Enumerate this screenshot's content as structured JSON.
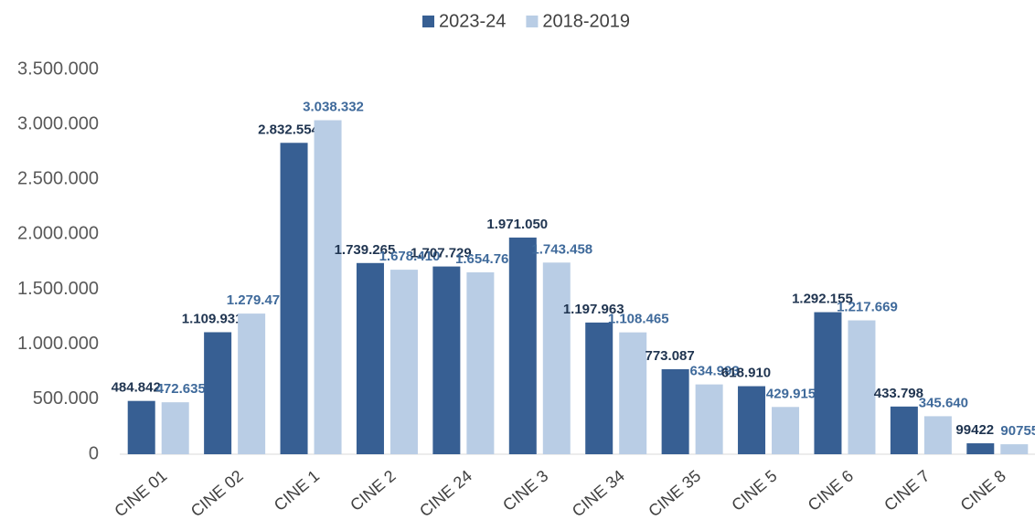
{
  "chart_data": {
    "type": "bar",
    "categories": [
      "CINE 01",
      "CINE 02",
      "CINE 1",
      "CINE 2",
      "CINE 24",
      "CINE 3",
      "CINE 34",
      "CINE 35",
      "CINE 5",
      "CINE 6",
      "CINE 7",
      "CINE 8"
    ],
    "series": [
      {
        "name": "2023-24",
        "color": "#375f93",
        "label_color": "#1f3450",
        "values": [
          484842,
          1109931,
          2832554,
          1739265,
          1707729,
          1971050,
          1197963,
          773087,
          618910,
          1292155,
          433798,
          99422
        ],
        "value_labels": [
          "484.842",
          "1.109.931",
          "2.832.554",
          "1.739.265",
          "1.707.729",
          "1.971.050",
          "1.197.963",
          "773.087",
          "618.910",
          "1.292.155",
          "433.798",
          "99422"
        ]
      },
      {
        "name": "2018-2019",
        "color": "#b9cde5",
        "label_color": "#3f6a9b",
        "values": [
          472635,
          1279475,
          3038332,
          1678410,
          1654762,
          1743458,
          1108465,
          634993,
          429915,
          1217669,
          345640,
          90755
        ],
        "value_labels": [
          "472.635",
          "1.279.475",
          "3.038.332",
          "1.678.410",
          "1.654.762",
          "1.743.458",
          "1.108.465",
          "634.993",
          "429.915",
          "1.217.669",
          "345.640",
          "90755"
        ]
      }
    ],
    "ylim": [
      0,
      3500000
    ],
    "yticks": [
      0,
      {
        "value": 500000,
        "label": "500.000"
      },
      {
        "value": 1000000,
        "label": "1.000.000"
      },
      {
        "value": 1500000,
        "label": "1.500.000"
      },
      {
        "value": 2000000,
        "label": "2.000.000"
      },
      {
        "value": 2500000,
        "label": "2.500.000"
      },
      {
        "value": 3000000,
        "label": "3.000.000"
      },
      {
        "value": 3500000,
        "label": "3.500.000"
      }
    ],
    "grid": false,
    "legend": "top"
  }
}
